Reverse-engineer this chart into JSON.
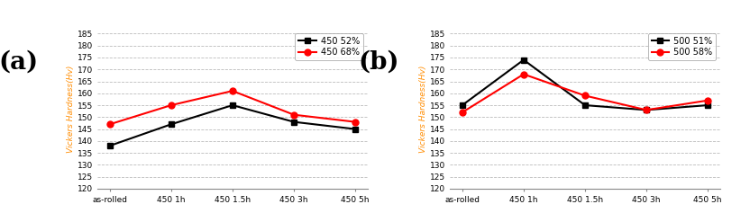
{
  "subplot_a": {
    "label": "(a)",
    "x_labels": [
      "as-rolled",
      "450 1h",
      "450 1.5h",
      "450 3h",
      "450 5h"
    ],
    "series": [
      {
        "label": "450 52%",
        "color": "#000000",
        "marker": "s",
        "values": [
          138,
          147,
          155,
          148,
          145
        ]
      },
      {
        "label": "450 68%",
        "color": "#ff0000",
        "marker": "o",
        "values": [
          147,
          155,
          161,
          151,
          148
        ]
      }
    ],
    "ylim": [
      120,
      187
    ],
    "yticks": [
      120,
      125,
      130,
      135,
      140,
      145,
      150,
      155,
      160,
      165,
      170,
      175,
      180,
      185
    ],
    "ylabel": "Vickers Hardness(Hv)"
  },
  "subplot_b": {
    "label": "(b)",
    "x_labels": [
      "as-rolled",
      "450 1h",
      "450 1.5h",
      "450 3h",
      "450 5h"
    ],
    "series": [
      {
        "label": "500 51%",
        "color": "#000000",
        "marker": "s",
        "values": [
          155,
          174,
          155,
          153,
          155
        ]
      },
      {
        "label": "500 58%",
        "color": "#ff0000",
        "marker": "o",
        "values": [
          152,
          168,
          159,
          153,
          157
        ]
      }
    ],
    "ylim": [
      120,
      187
    ],
    "yticks": [
      120,
      125,
      130,
      135,
      140,
      145,
      150,
      155,
      160,
      165,
      170,
      175,
      180,
      185
    ],
    "ylabel": "Vickers Hardness(Hv)"
  },
  "grid_color": "#bbbbbb",
  "grid_style": "--",
  "background_color": "#ffffff",
  "panel_label_fontsize": 20,
  "tick_fontsize": 6.5,
  "ylabel_fontsize": 6.5,
  "ylabel_color": "#ff8c00",
  "legend_fontsize": 7,
  "line_width": 1.5,
  "marker_size": 5
}
